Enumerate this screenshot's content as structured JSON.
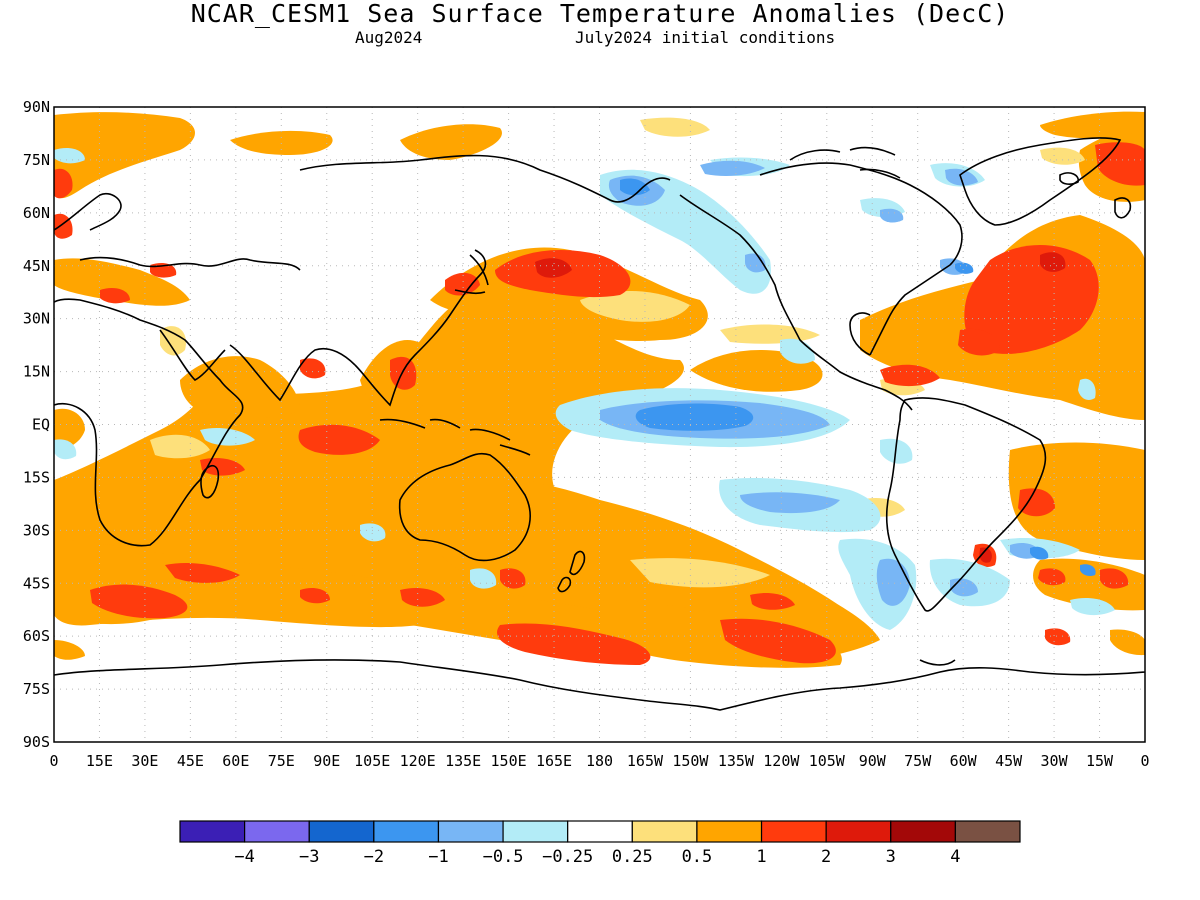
{
  "title": "NCAR_CESM1 Sea Surface Temperature Anomalies (DecC)",
  "subtitle_left": "Aug2024",
  "subtitle_right": "July2024 initial conditions",
  "map": {
    "lat_ticks": [
      "90N",
      "75N",
      "60N",
      "45N",
      "30N",
      "15N",
      "EQ",
      "15S",
      "30S",
      "45S",
      "60S",
      "75S",
      "90S"
    ],
    "lon_ticks": [
      "0",
      "15E",
      "30E",
      "45E",
      "60E",
      "75E",
      "90E",
      "105E",
      "120E",
      "135E",
      "150E",
      "165E",
      "180",
      "165W",
      "150W",
      "135W",
      "120W",
      "105W",
      "90W",
      "75W",
      "60W",
      "45W",
      "30W",
      "15W",
      "0"
    ]
  },
  "colorbar": {
    "colors": [
      "#3b1fb5",
      "#7b68ee",
      "#1466cf",
      "#3c96f0",
      "#78b6f5",
      "#b3ecf7",
      "#ffffff",
      "#fde07b",
      "#ffa500",
      "#ff3b0d",
      "#de1a0b",
      "#a30808",
      "#7a5143"
    ],
    "labels": [
      "−4",
      "−3",
      "−2",
      "−1",
      "−0.5",
      "−0.25",
      "0.25",
      "0.5",
      "1",
      "2",
      "3",
      "4"
    ]
  },
  "palette": {
    "land_outline": "#000000",
    "neg_light": "#b3ecf7",
    "neg_mid": "#78b6f5",
    "neg_strong": "#3c96f0",
    "neg_deep": "#1466cf",
    "pos_light": "#fde07b",
    "pos_mid": "#ffa500",
    "pos_strong": "#ff3b0d",
    "pos_deep": "#de1a0b"
  }
}
